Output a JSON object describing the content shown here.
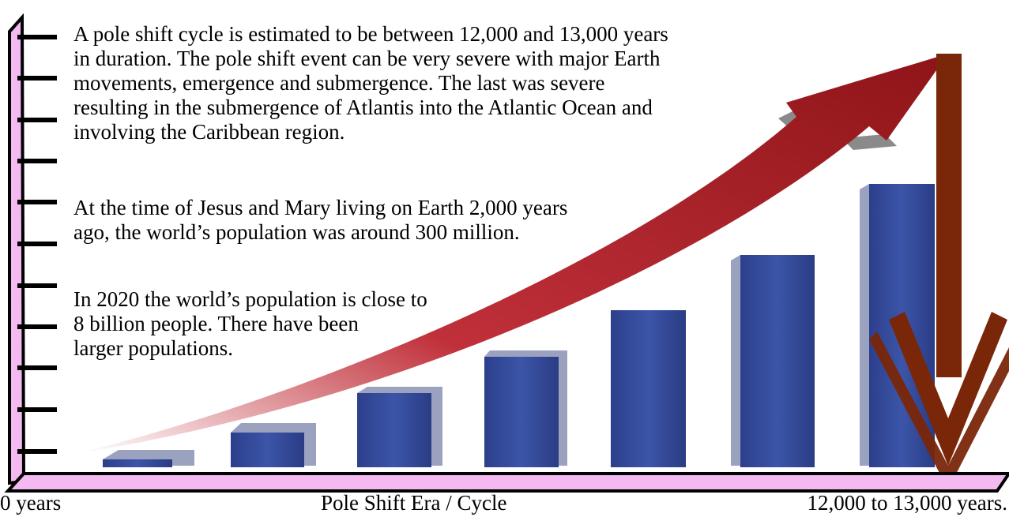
{
  "paragraphs": [
    {
      "lines": [
        "A pole shift cycle is estimated to be between 12,000 and 13,000 years",
        "in duration.  The pole shift event can be very severe with major Earth",
        "movements, emergence and submergence.  The last was severe",
        "resulting in the submergence of Atlantis into the Atlantic Ocean and",
        "involving the Caribbean region."
      ]
    },
    {
      "lines": [
        "At the time of Jesus and Mary living on Earth 2,000 years",
        "ago, the world’s population was around 300 million."
      ]
    },
    {
      "lines": [
        "In 2020 the world’s population is close to",
        "8 billion people.  There have been",
        "larger populations."
      ]
    }
  ],
  "axis": {
    "start_label": "0 years",
    "center_label": "Pole Shift Era  / Cycle",
    "end_label": "12,000 to 13,000 years."
  }
}
